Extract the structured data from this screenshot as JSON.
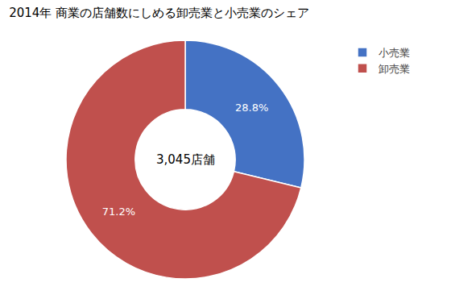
{
  "chart_data": {
    "type": "pie",
    "title": "2014年 商業の店舗数にしめる卸売業と小売業のシェア",
    "categories": [
      "小売業",
      "卸売業"
    ],
    "values": [
      28.8,
      71.2
    ],
    "value_labels": [
      "28.8%",
      "71.2%"
    ],
    "data_labels": true,
    "colors": [
      "#4472C4",
      "#C0504D"
    ],
    "annotations": [
      "3,045店舗"
    ],
    "legend": "upper right"
  }
}
